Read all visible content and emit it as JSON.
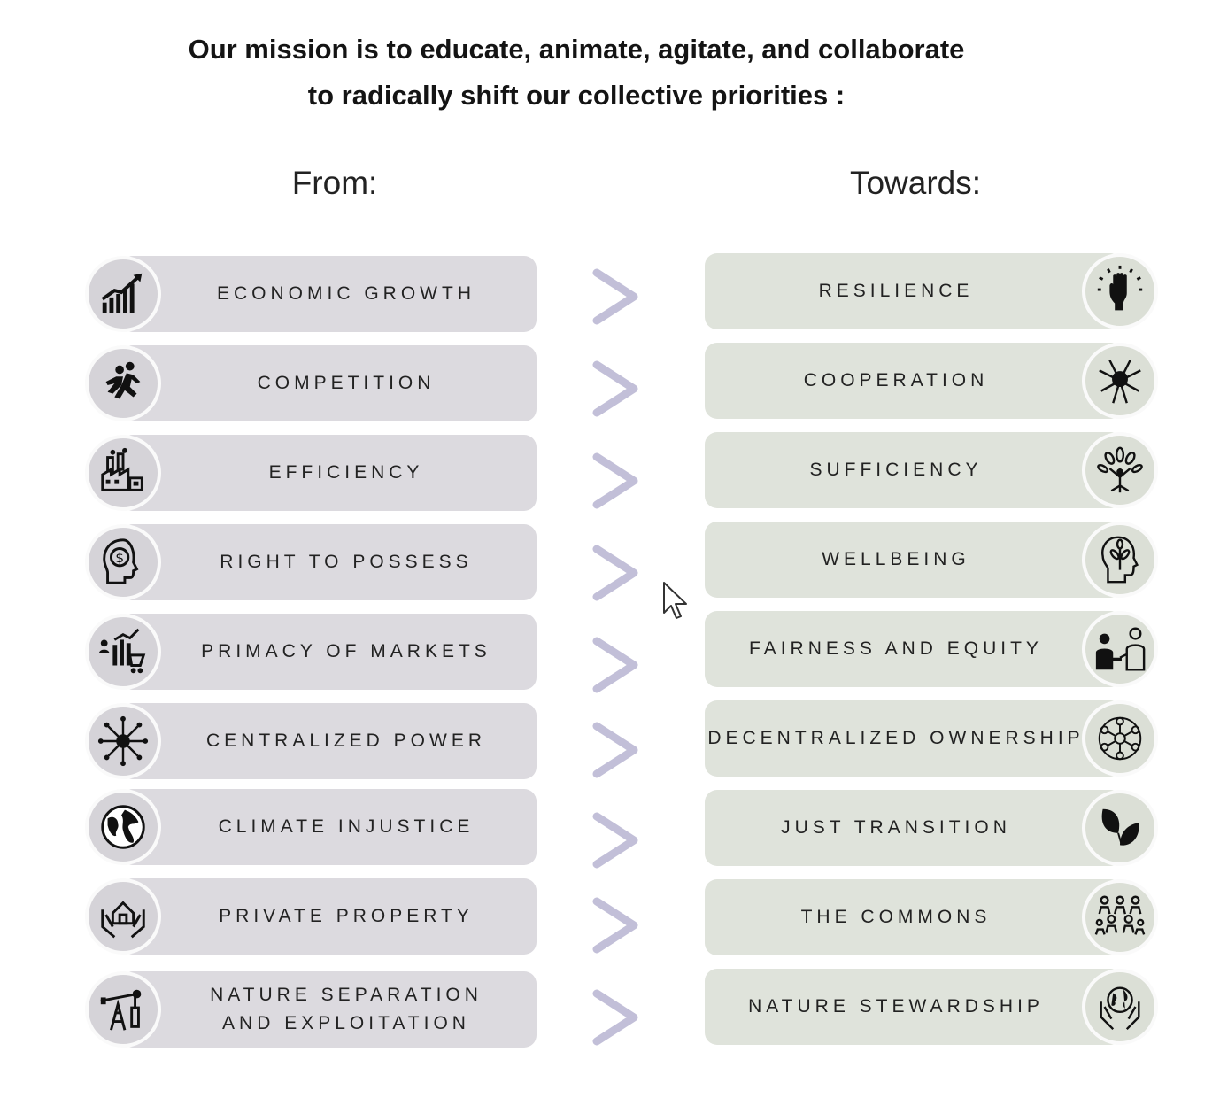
{
  "headline": {
    "line1": "Our mission is to educate, animate, agitate, and collaborate",
    "line2": "to radically shift our collective priorities :"
  },
  "headings": {
    "from": "From:",
    "towards": "Towards:"
  },
  "from_items": [
    {
      "label": "ECONOMIC GROWTH",
      "icon": "rising-chart-icon"
    },
    {
      "label": "COMPETITION",
      "icon": "runners-icon"
    },
    {
      "label": "EFFICIENCY",
      "icon": "factory-icon"
    },
    {
      "label": "RIGHT TO POSSESS",
      "icon": "money-head-icon"
    },
    {
      "label": "PRIMACY OF MARKETS",
      "icon": "market-cart-icon"
    },
    {
      "label": "CENTRALIZED POWER",
      "icon": "central-hub-icon"
    },
    {
      "label": "CLIMATE INJUSTICE",
      "icon": "globe-icon"
    },
    {
      "label": "PRIVATE PROPERTY",
      "icon": "house-hands-icon"
    },
    {
      "label": "NATURE SEPARATION AND EXPLOITATION",
      "icon": "oil-pump-icon"
    }
  ],
  "towards_items": [
    {
      "label": "RESILIENCE",
      "icon": "raised-fist-icon"
    },
    {
      "label": "COOPERATION",
      "icon": "joined-hands-icon"
    },
    {
      "label": "SUFFICIENCY",
      "icon": "tree-person-icon"
    },
    {
      "label": "WELLBEING",
      "icon": "head-plant-icon"
    },
    {
      "label": "FAIRNESS AND EQUITY",
      "icon": "handshake-icon"
    },
    {
      "label": "DECENTRALIZED OWNERSHIP",
      "icon": "network-icon"
    },
    {
      "label": "JUST TRANSITION",
      "icon": "leaves-icon"
    },
    {
      "label": "THE COMMONS",
      "icon": "community-icon"
    },
    {
      "label": "NATURE STEWARDSHIP",
      "icon": "earth-hands-icon"
    }
  ],
  "colors": {
    "from_pill": "#dcdadf",
    "towards_pill": "#dfe3db",
    "arrow": "#c2bfd8",
    "text": "#222222"
  }
}
